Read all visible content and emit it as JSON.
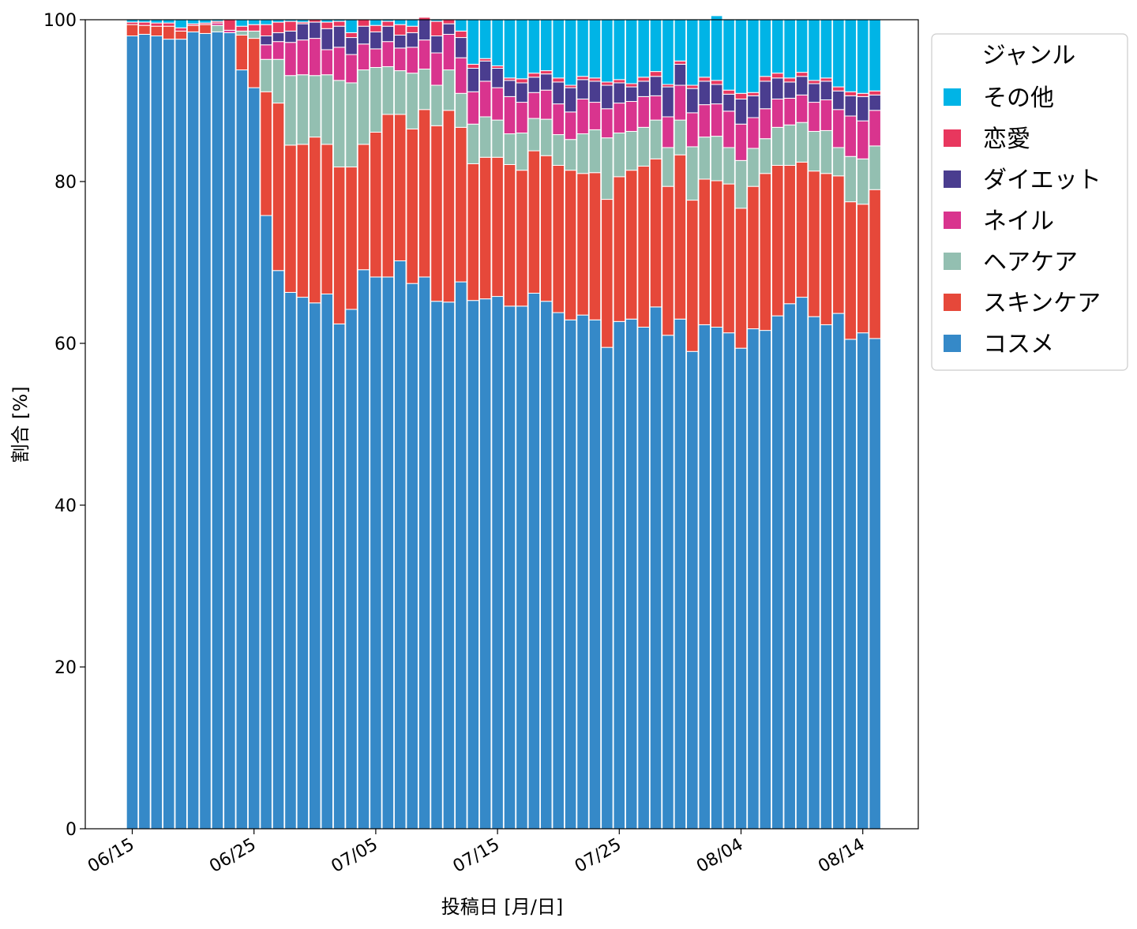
{
  "chart_data": {
    "type": "bar",
    "stacked": true,
    "xlabel": "投稿日 [月/日]",
    "ylabel": "割合 [%]",
    "ylim": [
      0,
      100
    ],
    "yticks": [
      0,
      20,
      40,
      60,
      80,
      100
    ],
    "xticks": [
      "06/15",
      "06/25",
      "07/05",
      "07/15",
      "07/25",
      "08/04",
      "08/14"
    ],
    "grid": false,
    "legend": {
      "title": "ジャンル",
      "position": "outside-right-top"
    },
    "x": [
      "06/15",
      "06/16",
      "06/17",
      "06/18",
      "06/19",
      "06/20",
      "06/21",
      "06/22",
      "06/23",
      "06/24",
      "06/25",
      "06/26",
      "06/27",
      "06/28",
      "06/29",
      "06/30",
      "07/01",
      "07/02",
      "07/03",
      "07/04",
      "07/05",
      "07/06",
      "07/07",
      "07/08",
      "07/09",
      "07/10",
      "07/11",
      "07/12",
      "07/13",
      "07/14",
      "07/15",
      "07/16",
      "07/17",
      "07/18",
      "07/19",
      "07/20",
      "07/21",
      "07/22",
      "07/23",
      "07/24",
      "07/25",
      "07/26",
      "07/27",
      "07/28",
      "07/29",
      "07/30",
      "07/31",
      "08/01",
      "08/02",
      "08/03",
      "08/04",
      "08/05",
      "08/06",
      "08/07",
      "08/08",
      "08/09",
      "08/10",
      "08/11",
      "08/12",
      "08/13",
      "08/14",
      "08/15"
    ],
    "series": [
      {
        "name": "コスメ",
        "color": "#3589c8",
        "values": [
          98.0,
          98.2,
          98.0,
          97.6,
          97.6,
          98.5,
          98.3,
          98.5,
          98.4,
          93.8,
          91.6,
          75.8,
          69.0,
          66.3,
          65.7,
          65.0,
          66.1,
          62.4,
          64.2,
          69.1,
          68.2,
          68.2,
          70.2,
          67.4,
          68.2,
          65.2,
          65.1,
          67.6,
          65.3,
          65.5,
          65.8,
          64.6,
          64.6,
          66.2,
          65.2,
          63.8,
          62.9,
          63.5,
          62.9,
          59.5,
          62.7,
          63.0,
          62.0,
          64.5,
          61.0,
          63.0,
          59.0,
          62.3,
          62.0,
          61.3,
          59.4,
          61.8,
          61.6,
          63.4,
          64.9,
          65.7,
          63.3,
          62.3,
          63.7,
          60.5,
          61.3,
          60.6
        ]
      },
      {
        "name": "スキンケア",
        "color": "#e6483a",
        "values": [
          1.4,
          1.1,
          1.2,
          1.6,
          1.0,
          0.8,
          1.1,
          0,
          0,
          4.3,
          6.1,
          15.3,
          20.7,
          18.2,
          18.9,
          20.5,
          18.5,
          19.4,
          17.6,
          15.5,
          17.9,
          20.1,
          18.1,
          19.1,
          20.7,
          21.7,
          23.7,
          19.1,
          16.9,
          17.5,
          17.2,
          17.5,
          16.8,
          17.6,
          18.0,
          18.2,
          18.5,
          17.5,
          18.2,
          18.3,
          17.9,
          18.4,
          19.9,
          18.3,
          18.4,
          20.3,
          18.7,
          18.0,
          18.1,
          18.4,
          17.3,
          17.6,
          19.4,
          18.6,
          17.1,
          16.7,
          18.0,
          18.7,
          17.0,
          17.0,
          15.9,
          18.4
        ]
      },
      {
        "name": "ヘアケア",
        "color": "#93bfb1",
        "values": [
          0,
          0,
          0,
          0,
          0,
          0,
          0,
          0.8,
          0,
          0.5,
          0.9,
          4.0,
          5.4,
          8.6,
          8.6,
          7.6,
          8.6,
          10.7,
          10.4,
          9.2,
          8.0,
          5.9,
          5.4,
          6.9,
          5.0,
          5.0,
          5.0,
          4.2,
          4.9,
          5.0,
          4.6,
          3.8,
          4.6,
          4.0,
          4.5,
          3.8,
          3.8,
          4.9,
          5.3,
          7.6,
          5.4,
          4.8,
          4.8,
          4.8,
          4.8,
          4.3,
          6.6,
          5.2,
          5.5,
          4.5,
          5.9,
          4.7,
          4.3,
          4.7,
          5.0,
          4.9,
          4.9,
          5.3,
          3.5,
          5.6,
          5.6,
          5.4
        ]
      },
      {
        "name": "ネイル",
        "color": "#d9348e",
        "values": [
          0,
          0,
          0,
          0,
          0,
          0,
          0,
          0.3,
          0.3,
          0,
          0,
          1.8,
          2.2,
          4.1,
          4.3,
          4.6,
          3.1,
          4.1,
          3.5,
          3.2,
          2.3,
          3.1,
          2.8,
          3.2,
          3.6,
          4.0,
          4.4,
          4.4,
          4.0,
          4.4,
          4.0,
          4.6,
          3.8,
          3.2,
          3.6,
          3.8,
          3.4,
          4.3,
          3.4,
          3.6,
          3.7,
          3.7,
          3.8,
          3.0,
          3.8,
          4.3,
          4.2,
          4.0,
          4.0,
          4.5,
          4.5,
          3.8,
          3.7,
          3.5,
          3.3,
          3.4,
          3.6,
          3.8,
          4.7,
          5.0,
          4.7,
          4.4
        ]
      },
      {
        "name": "ダイエット",
        "color": "#4a3d8f",
        "values": [
          0,
          0,
          0,
          0,
          0,
          0,
          0,
          0,
          0,
          0,
          0,
          1.1,
          1.1,
          1.4,
          2.0,
          2.0,
          2.6,
          2.6,
          2.1,
          2.2,
          2.1,
          1.9,
          1.6,
          1.8,
          2.5,
          2.1,
          1.3,
          2.5,
          2.9,
          2.5,
          2.4,
          2.0,
          2.4,
          1.9,
          2.0,
          2.7,
          3.0,
          2.4,
          2.6,
          2.9,
          2.5,
          1.8,
          1.9,
          2.4,
          3.7,
          2.6,
          3.0,
          2.9,
          2.4,
          2.1,
          3.1,
          2.7,
          3.4,
          2.6,
          2.0,
          2.3,
          2.3,
          2.3,
          2.3,
          2.5,
          3.0,
          1.9
        ]
      },
      {
        "name": "恋愛",
        "color": "#e8375e",
        "values": [
          0.3,
          0.4,
          0.4,
          0.4,
          0.4,
          0.2,
          0.2,
          0.2,
          1.3,
          0.6,
          0.8,
          1.4,
          1.3,
          1.2,
          0.2,
          0.3,
          0.8,
          0.6,
          0.6,
          0.8,
          0.8,
          0.6,
          1.3,
          0.8,
          0.3,
          1.8,
          0.5,
          0.8,
          0.5,
          0.3,
          0.3,
          0.3,
          0.5,
          0.5,
          0.4,
          0.5,
          0.3,
          0.4,
          0.4,
          0.4,
          0.4,
          0.4,
          0.5,
          0.6,
          0.3,
          0.4,
          0.4,
          0.5,
          0.5,
          0.5,
          0.7,
          0.4,
          0.6,
          0.6,
          0.5,
          0.5,
          0.4,
          0.4,
          0.5,
          0.5,
          0.4,
          0.5
        ]
      },
      {
        "name": "その他",
        "color": "#00b4e6",
        "values": [
          0.3,
          0.3,
          0.4,
          0.4,
          1.0,
          0.5,
          0.4,
          0.2,
          0,
          0.8,
          0.6,
          0.6,
          0.3,
          0.2,
          0.3,
          0,
          0.3,
          0.2,
          1.6,
          0,
          0.7,
          0.2,
          0.6,
          0.8,
          0,
          0.2,
          0,
          1.4,
          5.5,
          4.8,
          5.7,
          7.2,
          7.3,
          6.6,
          6.3,
          7.2,
          8.1,
          7.0,
          7.2,
          7.7,
          7.4,
          7.9,
          7.1,
          6.4,
          8.0,
          5.1,
          8.1,
          7.1,
          8.0,
          8.7,
          9.1,
          9.0,
          7.0,
          6.6,
          7.2,
          6.5,
          7.5,
          7.2,
          8.3,
          8.9,
          9.1,
          8.8
        ]
      }
    ]
  }
}
